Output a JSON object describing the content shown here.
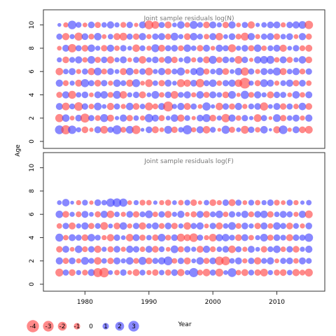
{
  "chart_data": {
    "type": "scatter",
    "subtype": "bubble-residuals",
    "xlabel": "Year",
    "ylabel": "Age",
    "xlim": [
      1973.5,
      2017.5
    ],
    "x_ticks": [
      1980,
      1990,
      2000,
      2010
    ],
    "y_ticks": [
      0,
      2,
      4,
      6,
      8,
      10
    ],
    "colors": {
      "negative": "#ff4040",
      "positive": "#3f3fff",
      "frame": "#333333"
    },
    "legend": {
      "placement": "bottom-left",
      "values": [
        -4,
        -3,
        -2,
        -1,
        0,
        1,
        2,
        3
      ],
      "labels": [
        "-4",
        "-3",
        "-2",
        "-1",
        "0",
        "1",
        "2",
        "3"
      ]
    },
    "panels": [
      {
        "title": "Joint sample residuals log(N)",
        "ylim": [
          -0.6,
          11.3
        ],
        "years": [
          1976,
          2015
        ],
        "ages": [
          1,
          10
        ],
        "residuals": [
          [
            2.0,
            -2.2,
            1.8,
            0.6,
            -1.1,
            -0.4,
            1.2,
            -1.5,
            0.9,
            2.1,
            -0.8,
            1.5,
            -1.9,
            0.3,
            1.1,
            -1.2,
            -0.5,
            1.6,
            -1.0,
            0.7,
            2.2,
            -0.6,
            1.3,
            -1.4,
            0.8,
            -0.3,
            1.7,
            -0.9,
            0.5,
            -1.6,
            1.0,
            -0.7,
            1.4,
            0.2,
            -1.3,
            1.9,
            -0.4,
            1.2,
            -1.1,
            -1.5
          ],
          [
            -1.7,
            1.4,
            -0.5,
            1.1,
            -2.1,
            0.9,
            -0.8,
            1.6,
            -1.2,
            0.4,
            1.3,
            -1.0,
            0.7,
            -0.6,
            1.8,
            1.2,
            -0.9,
            0.5,
            1.4,
            -1.3,
            0.8,
            -0.4,
            1.1,
            1.6,
            -1.1,
            0.6,
            -1.8,
            1.3,
            -0.7,
            1.0,
            0.4,
            -1.5,
            0.9,
            -0.3,
            1.5,
            -1.0,
            0.7,
            1.2,
            -0.6,
            1.3
          ],
          [
            1.2,
            -1.5,
            0.8,
            -1.9,
            1.0,
            -0.7,
            1.5,
            0.5,
            -1.3,
            0.9,
            -0.6,
            1.4,
            -1.1,
            0.7,
            -1.6,
            -0.8,
            1.2,
            -2.6,
            0.6,
            1.3,
            -1.2,
            0.9,
            -0.5,
            1.7,
            0.4,
            -1.4,
            1.0,
            -0.9,
            1.3,
            -0.6,
            0.8,
            1.1,
            -1.7,
            0.5,
            1.2,
            -1.0,
            0.9,
            -0.7,
            1.4,
            -1.1
          ],
          [
            -0.9,
            1.3,
            -1.6,
            0.7,
            1.1,
            -0.5,
            1.2,
            1.4,
            -0.8,
            1.6,
            -1.4,
            0.6,
            1.0,
            -1.2,
            0.5,
            1.5,
            -0.7,
            1.1,
            -1.5,
            0.8,
            1.3,
            -0.6,
            1.4,
            -0.9,
            1.2,
            0.7,
            -1.1,
            1.5,
            -0.4,
            1.7,
            -0.8,
            1.3,
            0.6,
            -1.2,
            1.0,
            0.9,
            -0.5,
            1.4,
            -0.7,
            1.2
          ],
          [
            1.3,
            -0.8,
            0.6,
            -1.2,
            1.7,
            0.9,
            -1.1,
            1.0,
            -0.6,
            1.4,
            0.8,
            -1.3,
            1.6,
            -0.5,
            -1.5,
            0.7,
            -1.0,
            1.2,
            0.5,
            -1.6,
            -1.3,
            1.1,
            -1.8,
            0.9,
            1.4,
            -0.7,
            1.0,
            1.3,
            -1.4,
            -3.1,
            0.6,
            -0.9,
            1.5,
            1.2,
            -0.6,
            0.8,
            1.3,
            -1.0,
            1.1,
            -0.7
          ],
          [
            -1.4,
            0.7,
            1.2,
            -0.6,
            0.9,
            -1.3,
            1.5,
            -0.8,
            1.1,
            0.5,
            -1.2,
            1.4,
            -0.7,
            1.0,
            -1.5,
            0.6,
            1.3,
            -1.0,
            0.8,
            1.6,
            -0.5,
            1.2,
            1.8,
            -0.9,
            0.7,
            1.3,
            -1.1,
            0.5,
            1.4,
            -1.7,
            0.9,
            -0.6,
            1.2,
            0.8,
            1.6,
            -1.2,
            0.7,
            1.3,
            -0.8,
            1.0
          ],
          [
            0.6,
            -1.1,
            0.8,
            1.3,
            -0.7,
            1.5,
            -0.9,
            1.0,
            -1.3,
            0.6,
            1.2,
            -0.5,
            0.9,
            -1.4,
            0.7,
            1.1,
            -0.8,
            1.4,
            -1.0,
            0.5,
            1.3,
            -0.6,
            0.8,
            -1.2,
            1.6,
            -0.9,
            1.1,
            0.7,
            -1.5,
            1.0,
            -0.4,
            1.3,
            1.5,
            1.6,
            -0.7,
            1.2,
            -0.9,
            0.6,
            1.4,
            -1.1
          ],
          [
            -0.5,
            1.2,
            -1.8,
            0.9,
            -1.1,
            1.4,
            0.6,
            -1.0,
            1.3,
            -0.7,
            1.0,
            0.5,
            -1.4,
            0.8,
            -0.6,
            1.6,
            -1.2,
            0.9,
            1.1,
            -0.8,
            1.4,
            0.7,
            -1.0,
            1.2,
            -0.5,
            1.3,
            0.9,
            -1.6,
            0.6,
            1.1,
            -0.9,
            1.4,
            -0.7,
            0.8,
            1.2,
            -1.3,
            0.5,
            1.0,
            -0.8,
            -1.2
          ],
          [
            0.9,
            -1.3,
            0.6,
            -1.7,
            1.1,
            -0.8,
            1.4,
            -0.5,
            0.7,
            -1.2,
            -1.5,
            0.9,
            -1.0,
            1.3,
            -0.6,
            1.0,
            1.2,
            -0.9,
            1.5,
            0.6,
            -1.1,
            1.4,
            0.8,
            -0.7,
            1.2,
            -1.4,
            0.5,
            1.1,
            -0.8,
            -1.6,
            1.3,
            -0.6,
            0.9,
            1.2,
            -1.0,
            0.7,
            1.1,
            -0.5,
            1.3,
            -0.9
          ],
          [
            0.3,
            -0.6,
            1.9,
            0.8,
            -0.5,
            1.1,
            -0.9,
            0.7,
            1.3,
            0.6,
            -0.8,
            1.0,
            -0.4,
            1.2,
            -2.0,
            -1.5,
            0.9,
            -1.2,
            0.5,
            1.4,
            -0.7,
            1.6,
            0.8,
            -1.1,
            1.2,
            0.6,
            -1.0,
            1.3,
            -0.5,
            0.9,
            -1.3,
            0.4,
            0.7,
            1.1,
            1.2,
            -0.6,
            1.0,
            1.3,
            1.5,
            -1.8
          ]
        ]
      },
      {
        "title": "Joint sample residuals log(F)",
        "ylim": [
          -0.6,
          11.3
        ],
        "years": [
          1976,
          2015
        ],
        "ages": [
          1,
          7
        ],
        "residuals": [
          [
            -1.6,
            0.9,
            -1.1,
            0.6,
            -0.8,
            1.2,
            -2.1,
            -2.4,
            0.5,
            -0.7,
            1.0,
            -0.5,
            -1.2,
            0.8,
            -0.6,
            -1.0,
            0.7,
            -0.9,
            1.1,
            -1.3,
            0.6,
            2.2,
            -0.8,
            -1.4,
            0.9,
            -1.6,
            0.5,
            2.0,
            -0.7,
            -1.2,
            0.8,
            -1.0,
            -1.5,
            0.6,
            -0.9,
            -1.1,
            0.7,
            -1.3,
            -0.8,
            -1.6
          ],
          [
            1.3,
            -0.9,
            1.1,
            -0.6,
            1.5,
            0.8,
            -1.4,
            0.7,
            -1.0,
            1.2,
            0.6,
            1.4,
            -0.8,
            1.6,
            -1.1,
            0.9,
            1.3,
            2.0,
            -0.7,
            1.0,
            -1.2,
            0.5,
            1.4,
            -0.9,
            1.1,
            -1.9,
            -2.0,
            0.7,
            1.2,
            -0.6,
            1.0,
            -1.3,
            0.8,
            1.3,
            -0.5,
            0.9,
            1.1,
            -0.7,
            1.2,
            0.8
          ],
          [
            -1.0,
            1.2,
            -0.5,
            1.4,
            -0.8,
            1.0,
            -1.3,
            0.6,
            -0.9,
            1.1,
            -0.6,
            1.3,
            1.0,
            -0.7,
            1.2,
            -1.1,
            0.8,
            -0.5,
            1.5,
            -0.9,
            1.0,
            0.6,
            -1.2,
            1.3,
            -0.8,
            0.7,
            1.1,
            -1.4,
            0.9,
            -0.6,
            1.2,
            0.5,
            -1.0,
            0.8,
            1.4,
            -0.7,
            1.0,
            -1.1,
            0.6,
            1.3
          ],
          [
            1.6,
            -0.7,
            1.2,
            0.9,
            -1.1,
            1.4,
            0.8,
            -0.6,
            -1.3,
            1.0,
            0.5,
            -1.4,
            1.2,
            -0.9,
            0.7,
            -1.0,
            1.5,
            -0.8,
            1.1,
            -1.6,
            -1.2,
            -1.9,
            0.9,
            -0.6,
            -1.5,
            1.3,
            1.4,
            0.8,
            -1.1,
            1.2,
            -0.7,
            0.6,
            1.5,
            -0.9,
            1.1,
            0.8,
            -1.2,
            1.0,
            0.9,
            1.8
          ],
          [
            -0.7,
            1.0,
            -1.2,
            0.6,
            1.3,
            -0.9,
            0.8,
            -1.5,
            0.5,
            -1.1,
            1.4,
            -0.6,
            1.0,
            -1.3,
            0.7,
            1.2,
            -0.8,
            1.1,
            -1.0,
            0.6,
            -1.4,
            0.9,
            1.3,
            -0.5,
            1.0,
            -1.2,
            0.7,
            1.5,
            -0.8,
            1.1,
            0.6,
            -1.0,
            1.2,
            -0.7,
            1.4,
            0.9,
            -1.1,
            0.8,
            -0.6,
            1.1
          ],
          [
            1.4,
            -1.1,
            0.6,
            -0.8,
            1.2,
            0.5,
            -0.9,
            1.3,
            -1.4,
            0.7,
            -0.6,
            1.1,
            -1.0,
            0.8,
            1.5,
            -0.7,
            1.0,
            -1.2,
            0.6,
            1.3,
            -0.5,
            -0.9,
            1.2,
            -1.1,
            0.8,
            1.4,
            -0.7,
            1.0,
            0.6,
            1.3,
            -0.8,
            1.1,
            1.4,
            -1.0,
            0.7,
            1.2,
            0.9,
            -0.6,
            1.3,
            -1.5
          ],
          [
            0.5,
            1.4,
            0.3,
            -0.6,
            0.8,
            -0.4,
            1.1,
            0.7,
            1.8,
            1.9,
            1.7,
            -0.5,
            0.6,
            -0.8,
            -0.7,
            0.4,
            -0.6,
            -0.9,
            0.5,
            -0.7,
            0.8,
            -1.0,
            -0.4,
            0.7,
            -1.1,
            -0.6,
            1.0,
            -1.2,
            0.9,
            -0.5,
            0.8,
            -0.7,
            0.6,
            1.0,
            -0.8,
            -0.5,
            0.9,
            -0.6,
            0.4,
            0.7
          ]
        ]
      }
    ]
  }
}
